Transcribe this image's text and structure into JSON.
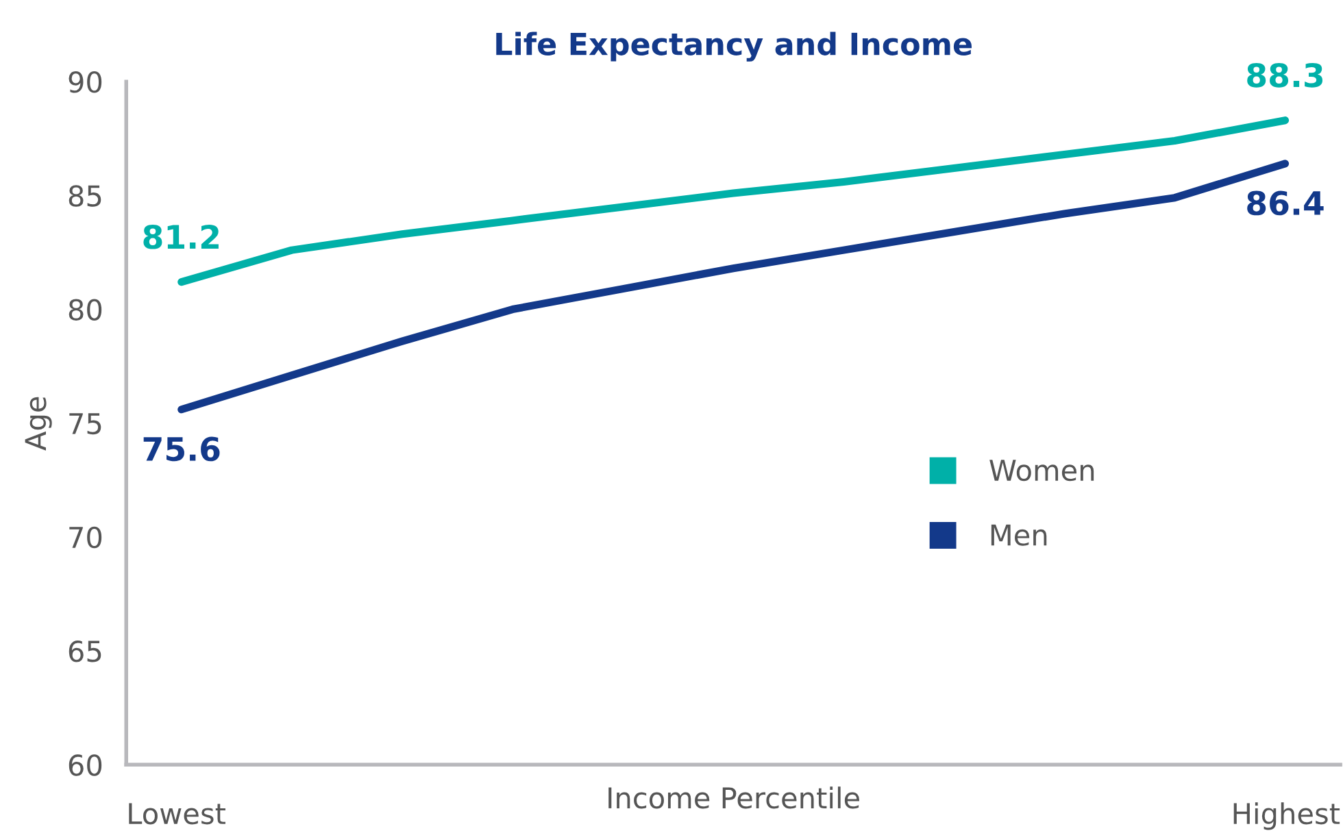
{
  "chart_data": {
    "type": "line",
    "title": "Life Expectancy and Income",
    "xlabel": "Income Percentile",
    "ylabel": "Age",
    "annotations": [
      "Lowest",
      "Highest"
    ],
    "categories": [
      null,
      null,
      null,
      null,
      null,
      null,
      null,
      null,
      null,
      null,
      null
    ],
    "series": [
      {
        "name": "Women",
        "color": "#00b0a8",
        "values": [
          81.2,
          82.6,
          83.3,
          83.9,
          84.5,
          85.1,
          85.6,
          86.2,
          86.8,
          87.4,
          88.3
        ],
        "value_labels": [
          "81.2",
          null,
          null,
          null,
          null,
          null,
          null,
          null,
          null,
          null,
          "88.3"
        ]
      },
      {
        "name": "Men",
        "color": "#13398a",
        "values": [
          75.6,
          77.1,
          78.6,
          80.0,
          80.9,
          81.8,
          82.6,
          83.4,
          84.2,
          84.9,
          86.4
        ],
        "value_labels": [
          "75.6",
          null,
          null,
          null,
          null,
          null,
          null,
          null,
          null,
          null,
          "86.4"
        ]
      }
    ],
    "ylim": [
      60,
      90
    ],
    "yticks": [
      60,
      65,
      70,
      75,
      80,
      85,
      90
    ],
    "grid": false,
    "legend": "right",
    "marker": "none",
    "line_style": "solid"
  }
}
